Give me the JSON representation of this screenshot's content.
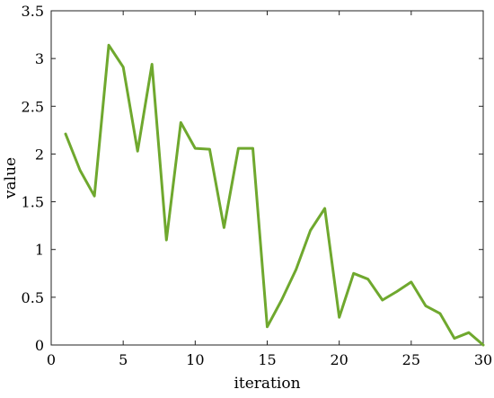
{
  "chart_data": {
    "type": "line",
    "title": "",
    "xlabel": "iteration",
    "ylabel": "value",
    "xlim": [
      0,
      30
    ],
    "ylim": [
      0,
      3.5
    ],
    "x_ticks": [
      0,
      5,
      10,
      15,
      20,
      25,
      30
    ],
    "x_tick_labels": [
      "0",
      "5",
      "10",
      "15",
      "20",
      "25",
      "30"
    ],
    "y_ticks": [
      0,
      0.5,
      1,
      1.5,
      2,
      2.5,
      3,
      3.5
    ],
    "y_tick_labels": [
      "0",
      "0.5",
      "1",
      "1.5",
      "2",
      "2.5",
      "3",
      "3.5"
    ],
    "grid": false,
    "legend": "none",
    "series": [
      {
        "color": "#6fa82e",
        "x": [
          1,
          2,
          3,
          4,
          5,
          6,
          7,
          8,
          9,
          10,
          11,
          12,
          13,
          14,
          15,
          16,
          17,
          18,
          19,
          20,
          21,
          22,
          23,
          24,
          25,
          26,
          27,
          28,
          29,
          30
        ],
        "y": [
          2.21,
          1.83,
          1.56,
          3.14,
          2.91,
          2.03,
          2.94,
          1.1,
          2.33,
          2.06,
          2.05,
          1.23,
          2.06,
          2.06,
          0.19,
          0.47,
          0.79,
          1.2,
          1.43,
          0.29,
          0.75,
          0.69,
          0.47,
          0.56,
          0.66,
          0.41,
          0.33,
          0.07,
          0.13,
          0.0
        ]
      }
    ]
  }
}
